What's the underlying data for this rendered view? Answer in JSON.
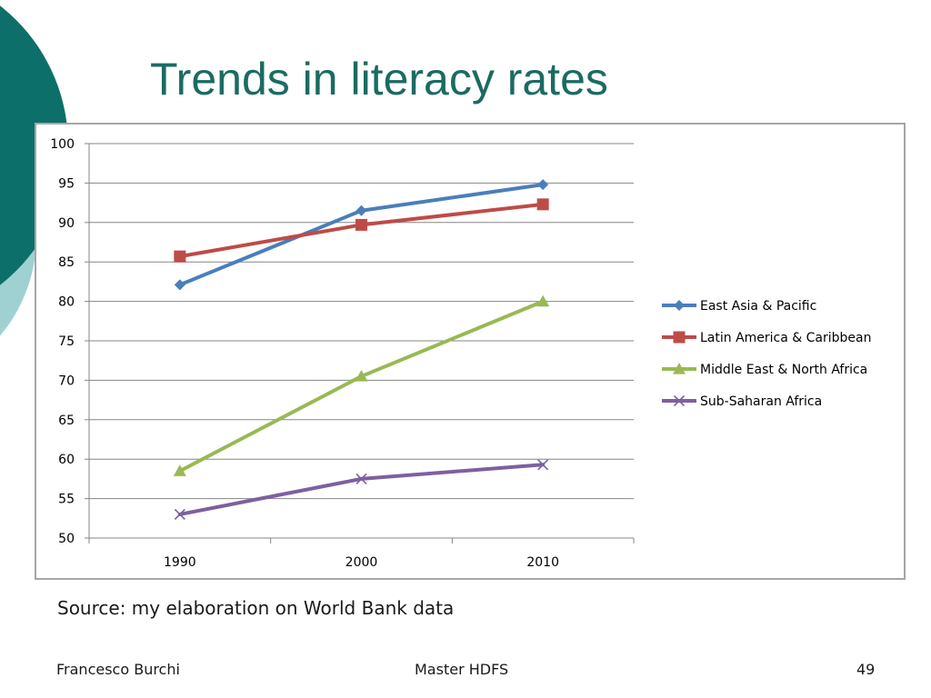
{
  "slide": {
    "title": "Trends in literacy rates",
    "source": "Source: my elaboration on World Bank data",
    "footer_left": "Francesco Burchi",
    "footer_center": "Master HDFS",
    "page_number": "49"
  },
  "colors": {
    "title": "#1b6b62",
    "deco_dark": "#0d6f69",
    "deco_light": "#9fd1d2",
    "gridline": "#868686"
  },
  "chart_data": {
    "type": "line",
    "categories": [
      "1990",
      "2000",
      "2010"
    ],
    "ylim": [
      50,
      100
    ],
    "yticks": [
      50,
      55,
      60,
      65,
      70,
      75,
      80,
      85,
      90,
      95,
      100
    ],
    "grid": true,
    "legend_position": "right",
    "xlabel": "",
    "ylabel": "",
    "series": [
      {
        "name": "East Asia & Pacific",
        "values": [
          82.1,
          91.5,
          94.8
        ],
        "color": "#4a7ebb",
        "marker": "diamond"
      },
      {
        "name": "Latin America & Caribbean",
        "values": [
          85.7,
          89.7,
          92.3
        ],
        "color": "#be4b48",
        "marker": "square"
      },
      {
        "name": "Middle East  & North Africa",
        "values": [
          58.5,
          70.5,
          80.0
        ],
        "color": "#98b954",
        "marker": "triangle"
      },
      {
        "name": "Sub-Saharan Africa",
        "values": [
          53.0,
          57.5,
          59.3
        ],
        "color": "#7d60a0",
        "marker": "x"
      }
    ]
  }
}
